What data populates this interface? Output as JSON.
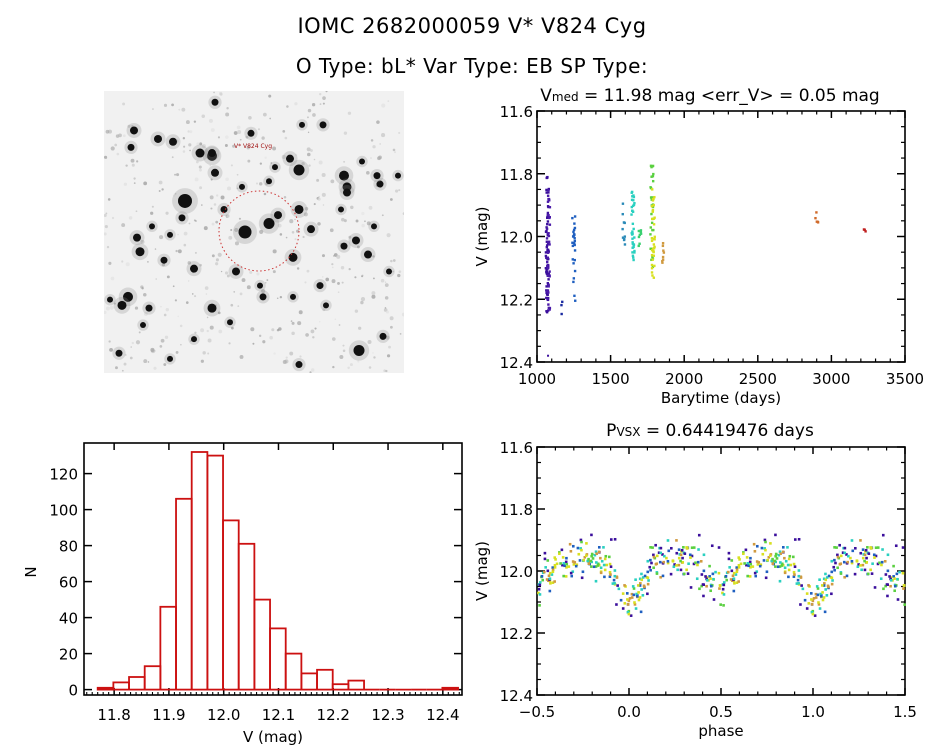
{
  "header": {
    "title_line1": "IOMC 2682000059    V* V824 Cyg",
    "title_line2": "O Type: bL*  Var Type: EB  SP Type:"
  },
  "image_panel": {
    "target_label": "V* V824 Cyg",
    "marker_color": "#cc3333",
    "background_color": "#f1f1f1",
    "stars": [
      [
        0.47,
        0.5,
        1.0
      ],
      [
        0.27,
        0.39,
        1.1
      ],
      [
        0.55,
        0.47,
        0.8
      ],
      [
        0.36,
        0.23,
        0.7
      ],
      [
        0.65,
        0.28,
        0.8
      ],
      [
        0.65,
        0.42,
        0.6
      ],
      [
        0.8,
        0.3,
        0.7
      ],
      [
        0.81,
        0.34,
        0.6
      ],
      [
        0.32,
        0.22,
        0.6
      ],
      [
        0.12,
        0.57,
        0.6
      ],
      [
        0.08,
        0.73,
        0.7
      ],
      [
        0.06,
        0.76,
        0.6
      ],
      [
        0.85,
        0.92,
        0.8
      ],
      [
        0.36,
        0.22,
        0.5
      ],
      [
        0.18,
        0.17,
        0.5
      ],
      [
        0.23,
        0.18,
        0.5
      ],
      [
        0.1,
        0.14,
        0.5
      ],
      [
        0.62,
        0.24,
        0.5
      ],
      [
        0.69,
        0.49,
        0.5
      ],
      [
        0.63,
        0.59,
        0.6
      ],
      [
        0.84,
        0.53,
        0.5
      ],
      [
        0.88,
        0.58,
        0.5
      ],
      [
        0.11,
        0.52,
        0.5
      ],
      [
        0.37,
        0.29,
        0.5
      ],
      [
        0.3,
        0.63,
        0.5
      ],
      [
        0.15,
        0.77,
        0.4
      ],
      [
        0.36,
        0.77,
        0.6
      ],
      [
        0.53,
        0.73,
        0.4
      ],
      [
        0.81,
        0.36,
        0.5
      ],
      [
        0.26,
        0.45,
        0.4
      ],
      [
        0.44,
        0.64,
        0.5
      ],
      [
        0.58,
        0.44,
        0.5
      ],
      [
        0.92,
        0.33,
        0.4
      ],
      [
        0.91,
        0.3,
        0.4
      ],
      [
        0.09,
        0.2,
        0.4
      ],
      [
        0.37,
        0.04,
        0.4
      ],
      [
        0.2,
        0.6,
        0.4
      ],
      [
        0.73,
        0.12,
        0.4
      ],
      [
        0.66,
        0.12,
        0.3
      ],
      [
        0.86,
        0.25,
        0.3
      ],
      [
        0.93,
        0.87,
        0.4
      ],
      [
        0.65,
        0.97,
        0.4
      ],
      [
        0.05,
        0.93,
        0.4
      ],
      [
        0.42,
        0.82,
        0.3
      ],
      [
        0.72,
        0.69,
        0.4
      ],
      [
        0.8,
        0.55,
        0.4
      ],
      [
        0.52,
        0.69,
        0.3
      ],
      [
        0.57,
        0.27,
        0.3
      ],
      [
        0.4,
        0.42,
        0.4
      ],
      [
        0.22,
        0.51,
        0.3
      ],
      [
        0.16,
        0.48,
        0.3
      ],
      [
        0.49,
        0.15,
        0.4
      ],
      [
        0.3,
        0.88,
        0.3
      ],
      [
        0.63,
        0.73,
        0.3
      ],
      [
        0.79,
        0.42,
        0.3
      ],
      [
        0.74,
        0.76,
        0.3
      ],
      [
        0.9,
        0.48,
        0.3
      ],
      [
        0.46,
        0.34,
        0.3
      ],
      [
        0.13,
        0.83,
        0.3
      ],
      [
        0.22,
        0.95,
        0.3
      ],
      [
        0.95,
        0.64,
        0.3
      ],
      [
        0.98,
        0.3,
        0.3
      ],
      [
        0.02,
        0.74,
        0.3
      ],
      [
        0.55,
        0.32,
        0.3
      ]
    ]
  },
  "chart_data": [
    {
      "name": "time_series",
      "type": "scatter",
      "title_main": "V",
      "title_sub": "med",
      "title_rest": " = 11.98 mag <err_V> = 0.05 mag",
      "xlabel": "Barytime (days)",
      "ylabel": "V (mag)",
      "xlim": [
        1000,
        3500
      ],
      "ylim": [
        11.6,
        12.4
      ],
      "y_inverted": true,
      "xticks": [
        1000,
        1500,
        2000,
        2500,
        3000,
        3500
      ],
      "xtick_labels": [
        "1000",
        "1500",
        "2000",
        "2500",
        "3000",
        "3500"
      ],
      "yticks": [
        11.6,
        11.8,
        12.0,
        12.2,
        12.4
      ],
      "ytick_labels": [
        "11.6",
        "11.8",
        "12.0",
        "12.2",
        "12.4"
      ],
      "clusters": [
        {
          "x": 1070,
          "y_min": 11.81,
          "y_max": 12.25,
          "color": "#3b0f9c",
          "n": 60
        },
        {
          "x": 1078,
          "y_min": 11.85,
          "y_max": 12.24,
          "color": "#4a1aa8",
          "n": 40
        },
        {
          "x": 1168,
          "y_min": 12.19,
          "y_max": 12.25,
          "color": "#1a2aa0",
          "n": 3
        },
        {
          "x": 1250,
          "y_min": 11.93,
          "y_max": 12.21,
          "color": "#1f5fc0",
          "n": 25
        },
        {
          "x": 1590,
          "y_min": 11.89,
          "y_max": 12.03,
          "color": "#2a8ab8",
          "n": 10
        },
        {
          "x": 1652,
          "y_min": 11.85,
          "y_max": 12.11,
          "color": "#2ad0c0",
          "n": 35
        },
        {
          "x": 1700,
          "y_min": 11.97,
          "y_max": 12.04,
          "color": "#3ad070",
          "n": 8
        },
        {
          "x": 1780,
          "y_min": 11.77,
          "y_max": 12.12,
          "color": "#5ad040",
          "n": 30
        },
        {
          "x": 1790,
          "y_min": 11.83,
          "y_max": 12.14,
          "color": "#d8e020",
          "n": 35
        },
        {
          "x": 1855,
          "y_min": 12.0,
          "y_max": 12.09,
          "color": "#d09a40",
          "n": 8
        },
        {
          "x": 2900,
          "y_min": 11.92,
          "y_max": 12.0,
          "color": "#d06a2a",
          "n": 5
        },
        {
          "x": 3225,
          "y_min": 11.97,
          "y_max": 11.99,
          "color": "#c02020",
          "n": 3
        }
      ],
      "outliers": [
        {
          "x": 1075,
          "y": 12.38,
          "color": "#3b0f9c"
        }
      ]
    },
    {
      "name": "histogram",
      "type": "bar",
      "xlabel": "V (mag)",
      "ylabel": "N",
      "xlim": [
        11.745,
        12.435
      ],
      "ylim": [
        -3,
        137
      ],
      "xticks": [
        11.8,
        11.9,
        12.0,
        12.1,
        12.2,
        12.3,
        12.4
      ],
      "xtick_labels": [
        "11.8",
        "11.9",
        "12.0",
        "12.1",
        "12.2",
        "12.3",
        "12.4"
      ],
      "yticks": [
        0,
        20,
        40,
        60,
        80,
        100,
        120
      ],
      "ytick_labels": [
        "0",
        "20",
        "40",
        "60",
        "80",
        "100",
        "120"
      ],
      "bar_color": "#cc1111",
      "bin_start": 11.77,
      "bin_width": 0.0286,
      "values": [
        1,
        4,
        7,
        13,
        46,
        106,
        132,
        130,
        94,
        81,
        50,
        34,
        20,
        9,
        11,
        3,
        5,
        0,
        0,
        0,
        0,
        0,
        1
      ]
    },
    {
      "name": "phased_light_curve",
      "type": "scatter",
      "title_main": "P",
      "title_sub": "VSX",
      "title_rest": " = 0.64419476 days",
      "xlabel": "phase",
      "ylabel": "V (mag)",
      "xlim": [
        -0.5,
        1.5
      ],
      "ylim": [
        11.6,
        12.4
      ],
      "y_inverted": true,
      "xticks": [
        -0.5,
        0.0,
        0.5,
        1.0,
        1.5
      ],
      "xtick_labels": [
        "−0.5",
        "0.0",
        "0.5",
        "1.0",
        "1.5"
      ],
      "yticks": [
        11.6,
        11.8,
        12.0,
        12.2,
        12.4
      ],
      "ytick_labels": [
        "11.6",
        "11.8",
        "12.0",
        "12.2",
        "12.4"
      ],
      "period_days": 0.64419476,
      "colors": [
        "#3b0f9c",
        "#1f5fc0",
        "#2ad0c0",
        "#5ad040",
        "#d8e020",
        "#d09a40",
        "#c02020",
        "#000000"
      ],
      "curve_model": {
        "baseline": 11.96,
        "primary_depth": 0.13,
        "primary_phase": 0.0,
        "secondary_depth": 0.09,
        "secondary_phase": 0.5,
        "width": 0.07,
        "scatter": 0.05
      },
      "n_points_per_cycle": 300
    }
  ]
}
